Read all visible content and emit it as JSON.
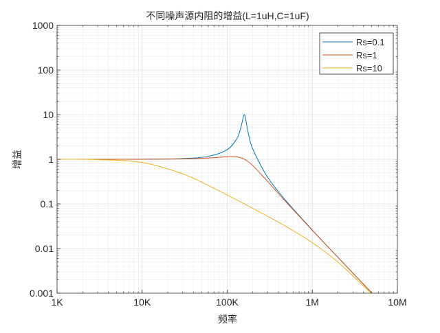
{
  "chart_data": {
    "type": "line",
    "title": "不同噪声源内阻的增益(L=1uH,C=1uF)",
    "xlabel": "频率",
    "ylabel": "增益",
    "xscale": "log",
    "yscale": "log",
    "xlim": [
      1000,
      10000000
    ],
    "ylim": [
      0.001,
      1000
    ],
    "x_ticks": [
      1000,
      10000,
      100000,
      1000000,
      10000000
    ],
    "x_tick_labels": [
      "1K",
      "10K",
      "100K",
      "1M",
      "10M"
    ],
    "y_ticks": [
      0.001,
      0.01,
      0.1,
      1,
      10,
      100,
      1000
    ],
    "y_tick_labels": [
      "0.001",
      "0.01",
      "0.1",
      "1",
      "10",
      "100",
      "1000"
    ],
    "grid": "major and minor",
    "legend_position": "top-right",
    "series": [
      {
        "name": "Rs=0.1",
        "color": "#0072BD",
        "x": [
          1000,
          3000,
          10000,
          30000,
          60000,
          100000,
          130000,
          140000,
          150000,
          155000,
          159155,
          163000,
          170000,
          180000,
          200000,
          300000,
          500000,
          1000000,
          2000000,
          5000000
        ],
        "y": [
          1.0,
          1.0004,
          1.004,
          1.037,
          1.165,
          1.643,
          2.918,
          4.12,
          6.84,
          9.08,
          10.0,
          8.81,
          5.66,
          3.32,
          1.687,
          0.3906,
          0.1127,
          0.02599,
          0.006373,
          0.001014
        ]
      },
      {
        "name": "Rs=1",
        "color": "#D95319",
        "x": [
          1000,
          10000,
          30000,
          60000,
          100000,
          112500,
          130000,
          150000,
          159155,
          170000,
          200000,
          300000,
          500000,
          1000000,
          2000000,
          5000000
        ],
        "y": [
          1.0,
          1.002,
          1.0176,
          1.067,
          1.146,
          1.155,
          1.134,
          1.054,
          1.0,
          0.928,
          0.7227,
          0.3151,
          0.1063,
          0.02565,
          0.006353,
          0.001014
        ]
      },
      {
        "name": "Rs=10",
        "color": "#EDB120",
        "x": [
          1000,
          3000,
          10000,
          30000,
          60000,
          100000,
          130000,
          150000,
          159155,
          170000,
          200000,
          300000,
          500000,
          1000000,
          2000000,
          5000000
        ],
        "y": [
          0.998,
          0.983,
          0.849,
          0.4723,
          0.2587,
          0.1584,
          0.1223,
          0.1061,
          0.1,
          0.0936,
          0.0795,
          0.05257,
          0.03063,
          0.01357,
          0.004974,
          0.000966
        ]
      }
    ]
  }
}
